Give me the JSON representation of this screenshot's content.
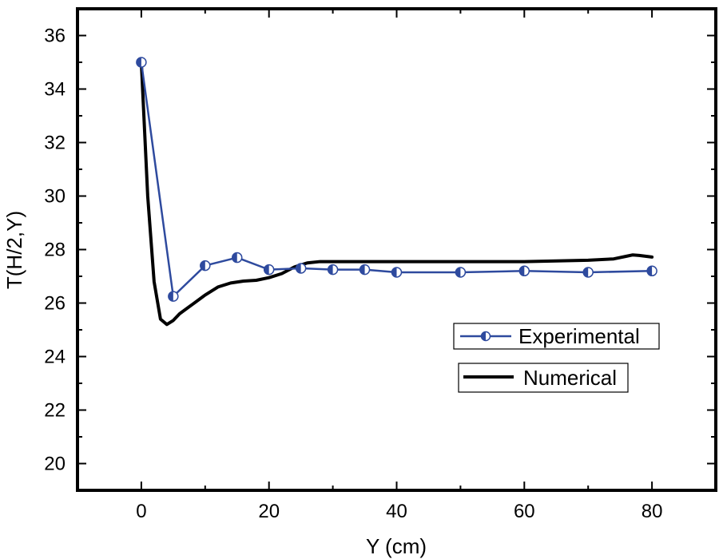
{
  "chart_data": {
    "type": "line",
    "title": "",
    "xlabel": "Y (cm)",
    "ylabel": "T(H/2,Y)",
    "xlim": [
      -10,
      90
    ],
    "ylim": [
      19,
      37
    ],
    "xticks": [
      0,
      20,
      40,
      60,
      80
    ],
    "yticks": [
      20,
      22,
      24,
      26,
      28,
      30,
      32,
      34,
      36
    ],
    "grid": false,
    "legend_position": "right",
    "series": [
      {
        "name": "Experimental",
        "color": "#2e4a9e",
        "marker": "half-filled-circle",
        "x": [
          0,
          5,
          10,
          15,
          20,
          25,
          30,
          35,
          40,
          50,
          60,
          70,
          80
        ],
        "y": [
          35.0,
          26.25,
          27.4,
          27.7,
          27.25,
          27.3,
          27.25,
          27.25,
          27.15,
          27.15,
          27.2,
          27.15,
          27.2
        ]
      },
      {
        "name": "Numerical",
        "color": "#000000",
        "marker": "none",
        "x": [
          0,
          1,
          2,
          3,
          4,
          5,
          6,
          8,
          10,
          12,
          14,
          16,
          18,
          20,
          22,
          24,
          26,
          28,
          30,
          35,
          40,
          50,
          60,
          70,
          74,
          76,
          77,
          78,
          80
        ],
        "y": [
          35.0,
          30.0,
          26.8,
          25.4,
          25.2,
          25.35,
          25.6,
          25.95,
          26.3,
          26.6,
          26.75,
          26.82,
          26.85,
          26.95,
          27.1,
          27.35,
          27.5,
          27.55,
          27.55,
          27.55,
          27.55,
          27.55,
          27.55,
          27.6,
          27.65,
          27.75,
          27.8,
          27.78,
          27.72
        ]
      }
    ]
  }
}
